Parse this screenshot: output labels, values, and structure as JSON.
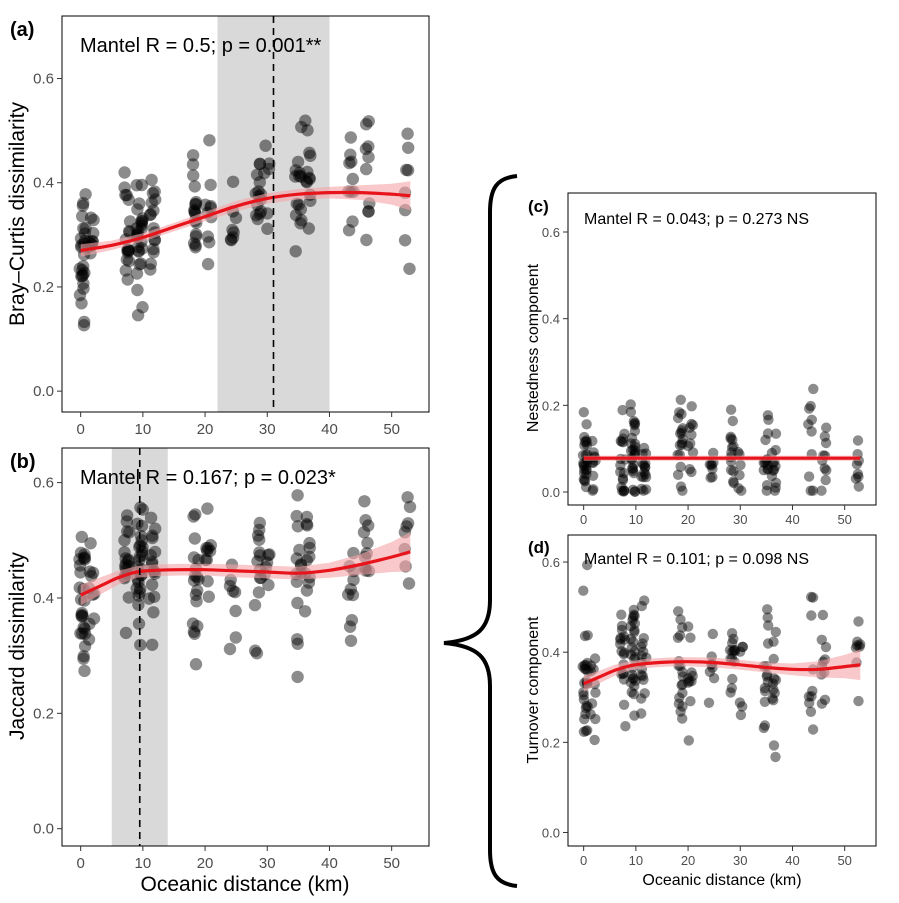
{
  "chart_data": [
    {
      "id": "a",
      "type": "scatter",
      "panel_label": "(a)",
      "annotation": "Mantel R = 0.5; p = 0.001**",
      "ylabel": "Bray–Curtis dissimilarity",
      "xlabel": "",
      "xlim": [
        -3,
        56
      ],
      "ylim": [
        -0.04,
        0.72
      ],
      "x_ticks": [
        0,
        10,
        20,
        30,
        40,
        50
      ],
      "y_ticks": [
        0.0,
        0.2,
        0.4,
        0.6
      ],
      "y_tick_labels": [
        "0.0",
        "0.2",
        "0.4",
        "0.6"
      ],
      "shaded_band": [
        22,
        40
      ],
      "breakpoint": 31,
      "fit": {
        "x": [
          0,
          5,
          10,
          15,
          20,
          25,
          30,
          35,
          40,
          45,
          50,
          53
        ],
        "y": [
          0.27,
          0.28,
          0.295,
          0.315,
          0.335,
          0.355,
          0.37,
          0.378,
          0.381,
          0.381,
          0.378,
          0.375
        ]
      },
      "ci_half_width": [
        0.012,
        0.009,
        0.008,
        0.008,
        0.009,
        0.01,
        0.01,
        0.01,
        0.011,
        0.014,
        0.02,
        0.028
      ],
      "clusters": [
        {
          "x": 0.3,
          "mean": 0.25,
          "sd": 0.055,
          "n": 26
        },
        {
          "x": 1.8,
          "mean": 0.285,
          "sd": 0.04,
          "n": 10
        },
        {
          "x": 7.5,
          "mean": 0.31,
          "sd": 0.06,
          "n": 18
        },
        {
          "x": 9.5,
          "mean": 0.31,
          "sd": 0.055,
          "n": 26
        },
        {
          "x": 11.5,
          "mean": 0.3,
          "sd": 0.05,
          "n": 16
        },
        {
          "x": 18.5,
          "mean": 0.33,
          "sd": 0.05,
          "n": 18
        },
        {
          "x": 20.5,
          "mean": 0.34,
          "sd": 0.05,
          "n": 10
        },
        {
          "x": 24.5,
          "mean": 0.3,
          "sd": 0.05,
          "n": 8
        },
        {
          "x": 28.5,
          "mean": 0.38,
          "sd": 0.05,
          "n": 14
        },
        {
          "x": 30,
          "mean": 0.39,
          "sd": 0.05,
          "n": 6
        },
        {
          "x": 35,
          "mean": 0.38,
          "sd": 0.07,
          "n": 14
        },
        {
          "x": 36.5,
          "mean": 0.4,
          "sd": 0.07,
          "n": 12
        },
        {
          "x": 43.5,
          "mean": 0.38,
          "sd": 0.06,
          "n": 10
        },
        {
          "x": 46,
          "mean": 0.41,
          "sd": 0.06,
          "n": 10
        },
        {
          "x": 52.5,
          "mean": 0.36,
          "sd": 0.06,
          "n": 8
        }
      ]
    },
    {
      "id": "b",
      "type": "scatter",
      "panel_label": "(b)",
      "annotation": "Mantel R = 0.167; p = 0.023*",
      "ylabel": "Jaccard dissimilarity",
      "xlabel": "Oceanic distance (km)",
      "xlim": [
        -3,
        56
      ],
      "ylim": [
        -0.03,
        0.66
      ],
      "x_ticks": [
        0,
        10,
        20,
        30,
        40,
        50
      ],
      "y_ticks": [
        0.0,
        0.2,
        0.4,
        0.6
      ],
      "y_tick_labels": [
        "0.0",
        "0.2",
        "0.4",
        "0.6"
      ],
      "shaded_band": [
        5,
        14
      ],
      "breakpoint": 9.5,
      "fit": {
        "x": [
          0,
          3,
          6,
          9,
          12,
          16,
          20,
          25,
          30,
          35,
          40,
          45,
          50,
          53
        ],
        "y": [
          0.405,
          0.42,
          0.435,
          0.445,
          0.448,
          0.449,
          0.449,
          0.447,
          0.445,
          0.443,
          0.448,
          0.458,
          0.471,
          0.48
        ]
      },
      "ci_half_width": [
        0.018,
        0.015,
        0.012,
        0.01,
        0.01,
        0.01,
        0.01,
        0.011,
        0.011,
        0.011,
        0.013,
        0.018,
        0.026,
        0.034
      ],
      "clusters": [
        {
          "x": 0.3,
          "mean": 0.4,
          "sd": 0.07,
          "n": 26
        },
        {
          "x": 1.8,
          "mean": 0.43,
          "sd": 0.06,
          "n": 10
        },
        {
          "x": 7.5,
          "mean": 0.45,
          "sd": 0.06,
          "n": 18
        },
        {
          "x": 9.5,
          "mean": 0.47,
          "sd": 0.06,
          "n": 26
        },
        {
          "x": 11.5,
          "mean": 0.44,
          "sd": 0.06,
          "n": 16
        },
        {
          "x": 18.5,
          "mean": 0.44,
          "sd": 0.07,
          "n": 18
        },
        {
          "x": 20.5,
          "mean": 0.47,
          "sd": 0.06,
          "n": 10
        },
        {
          "x": 24.5,
          "mean": 0.4,
          "sd": 0.06,
          "n": 8
        },
        {
          "x": 28.5,
          "mean": 0.47,
          "sd": 0.05,
          "n": 14
        },
        {
          "x": 30,
          "mean": 0.44,
          "sd": 0.05,
          "n": 6
        },
        {
          "x": 35,
          "mean": 0.44,
          "sd": 0.07,
          "n": 14
        },
        {
          "x": 36.5,
          "mean": 0.46,
          "sd": 0.06,
          "n": 12
        },
        {
          "x": 43.5,
          "mean": 0.44,
          "sd": 0.06,
          "n": 10
        },
        {
          "x": 46,
          "mean": 0.49,
          "sd": 0.05,
          "n": 10
        },
        {
          "x": 52.5,
          "mean": 0.49,
          "sd": 0.05,
          "n": 8
        }
      ]
    },
    {
      "id": "c",
      "type": "scatter",
      "panel_label": "(c)",
      "annotation": "Mantel R = 0.043; p = 0.273 NS",
      "ylabel": "Nestedness component",
      "xlabel": "",
      "xlim": [
        -3,
        56
      ],
      "ylim": [
        -0.03,
        0.69
      ],
      "x_ticks": [
        0,
        10,
        20,
        30,
        40,
        50
      ],
      "y_ticks": [
        0.0,
        0.2,
        0.4,
        0.6
      ],
      "y_tick_labels": [
        "0.0",
        "0.2",
        "0.4",
        "0.6"
      ],
      "fit": {
        "x": [
          0,
          53
        ],
        "y": [
          0.078,
          0.078
        ]
      },
      "ci_half_width": [
        0.006,
        0.006
      ],
      "clusters": [
        {
          "x": 0.3,
          "mean": 0.08,
          "sd": 0.06,
          "n": 26
        },
        {
          "x": 1.8,
          "mean": 0.08,
          "sd": 0.05,
          "n": 10
        },
        {
          "x": 7.5,
          "mean": 0.08,
          "sd": 0.06,
          "n": 18
        },
        {
          "x": 9.5,
          "mean": 0.09,
          "sd": 0.06,
          "n": 26
        },
        {
          "x": 11.5,
          "mean": 0.07,
          "sd": 0.05,
          "n": 16
        },
        {
          "x": 18.5,
          "mean": 0.08,
          "sd": 0.06,
          "n": 18
        },
        {
          "x": 20.5,
          "mean": 0.09,
          "sd": 0.06,
          "n": 10
        },
        {
          "x": 24.5,
          "mean": 0.05,
          "sd": 0.03,
          "n": 8
        },
        {
          "x": 28.5,
          "mean": 0.08,
          "sd": 0.05,
          "n": 14
        },
        {
          "x": 30,
          "mean": 0.07,
          "sd": 0.04,
          "n": 6
        },
        {
          "x": 35,
          "mean": 0.08,
          "sd": 0.06,
          "n": 14
        },
        {
          "x": 36.5,
          "mean": 0.08,
          "sd": 0.06,
          "n": 12
        },
        {
          "x": 43.5,
          "mean": 0.1,
          "sd": 0.07,
          "n": 10
        },
        {
          "x": 46,
          "mean": 0.08,
          "sd": 0.05,
          "n": 10
        },
        {
          "x": 52.5,
          "mean": 0.07,
          "sd": 0.05,
          "n": 8
        }
      ]
    },
    {
      "id": "d",
      "type": "scatter",
      "panel_label": "(d)",
      "annotation": "Mantel R = 0.101; p = 0.098 NS",
      "ylabel": "Turnover component",
      "xlabel": "Oceanic distance (km)",
      "xlim": [
        -3,
        56
      ],
      "ylim": [
        -0.03,
        0.66
      ],
      "x_ticks": [
        0,
        10,
        20,
        30,
        40,
        50
      ],
      "y_ticks": [
        0.0,
        0.2,
        0.4,
        0.6
      ],
      "y_tick_labels": [
        "0.0",
        "0.2",
        "0.4",
        "0.6"
      ],
      "fit": {
        "x": [
          0,
          3,
          6,
          9,
          12,
          16,
          20,
          25,
          30,
          35,
          40,
          45,
          50,
          53
        ],
        "y": [
          0.33,
          0.345,
          0.36,
          0.37,
          0.375,
          0.378,
          0.379,
          0.377,
          0.372,
          0.366,
          0.362,
          0.362,
          0.368,
          0.372
        ]
      },
      "ci_half_width": [
        0.018,
        0.014,
        0.012,
        0.01,
        0.01,
        0.01,
        0.01,
        0.011,
        0.011,
        0.011,
        0.013,
        0.018,
        0.026,
        0.034
      ],
      "clusters": [
        {
          "x": 0.3,
          "mean": 0.32,
          "sd": 0.08,
          "n": 26
        },
        {
          "x": 1.8,
          "mean": 0.34,
          "sd": 0.08,
          "n": 10
        },
        {
          "x": 7.5,
          "mean": 0.37,
          "sd": 0.07,
          "n": 18
        },
        {
          "x": 9.5,
          "mean": 0.38,
          "sd": 0.08,
          "n": 26
        },
        {
          "x": 11.5,
          "mean": 0.36,
          "sd": 0.07,
          "n": 16
        },
        {
          "x": 18.5,
          "mean": 0.37,
          "sd": 0.08,
          "n": 18
        },
        {
          "x": 20.5,
          "mean": 0.39,
          "sd": 0.07,
          "n": 10
        },
        {
          "x": 24.5,
          "mean": 0.35,
          "sd": 0.06,
          "n": 8
        },
        {
          "x": 28.5,
          "mean": 0.39,
          "sd": 0.06,
          "n": 14
        },
        {
          "x": 30,
          "mean": 0.36,
          "sd": 0.06,
          "n": 6
        },
        {
          "x": 35,
          "mean": 0.36,
          "sd": 0.08,
          "n": 14
        },
        {
          "x": 36.5,
          "mean": 0.35,
          "sd": 0.08,
          "n": 12
        },
        {
          "x": 43.5,
          "mean": 0.32,
          "sd": 0.1,
          "n": 10
        },
        {
          "x": 46,
          "mean": 0.38,
          "sd": 0.07,
          "n": 10
        },
        {
          "x": 52.5,
          "mean": 0.39,
          "sd": 0.06,
          "n": 8
        }
      ]
    }
  ],
  "colors": {
    "points": "#000000",
    "fit_line": "#e8141b",
    "confidence_band": "#f4a3a6",
    "shaded_region": "#d9d9d9"
  }
}
